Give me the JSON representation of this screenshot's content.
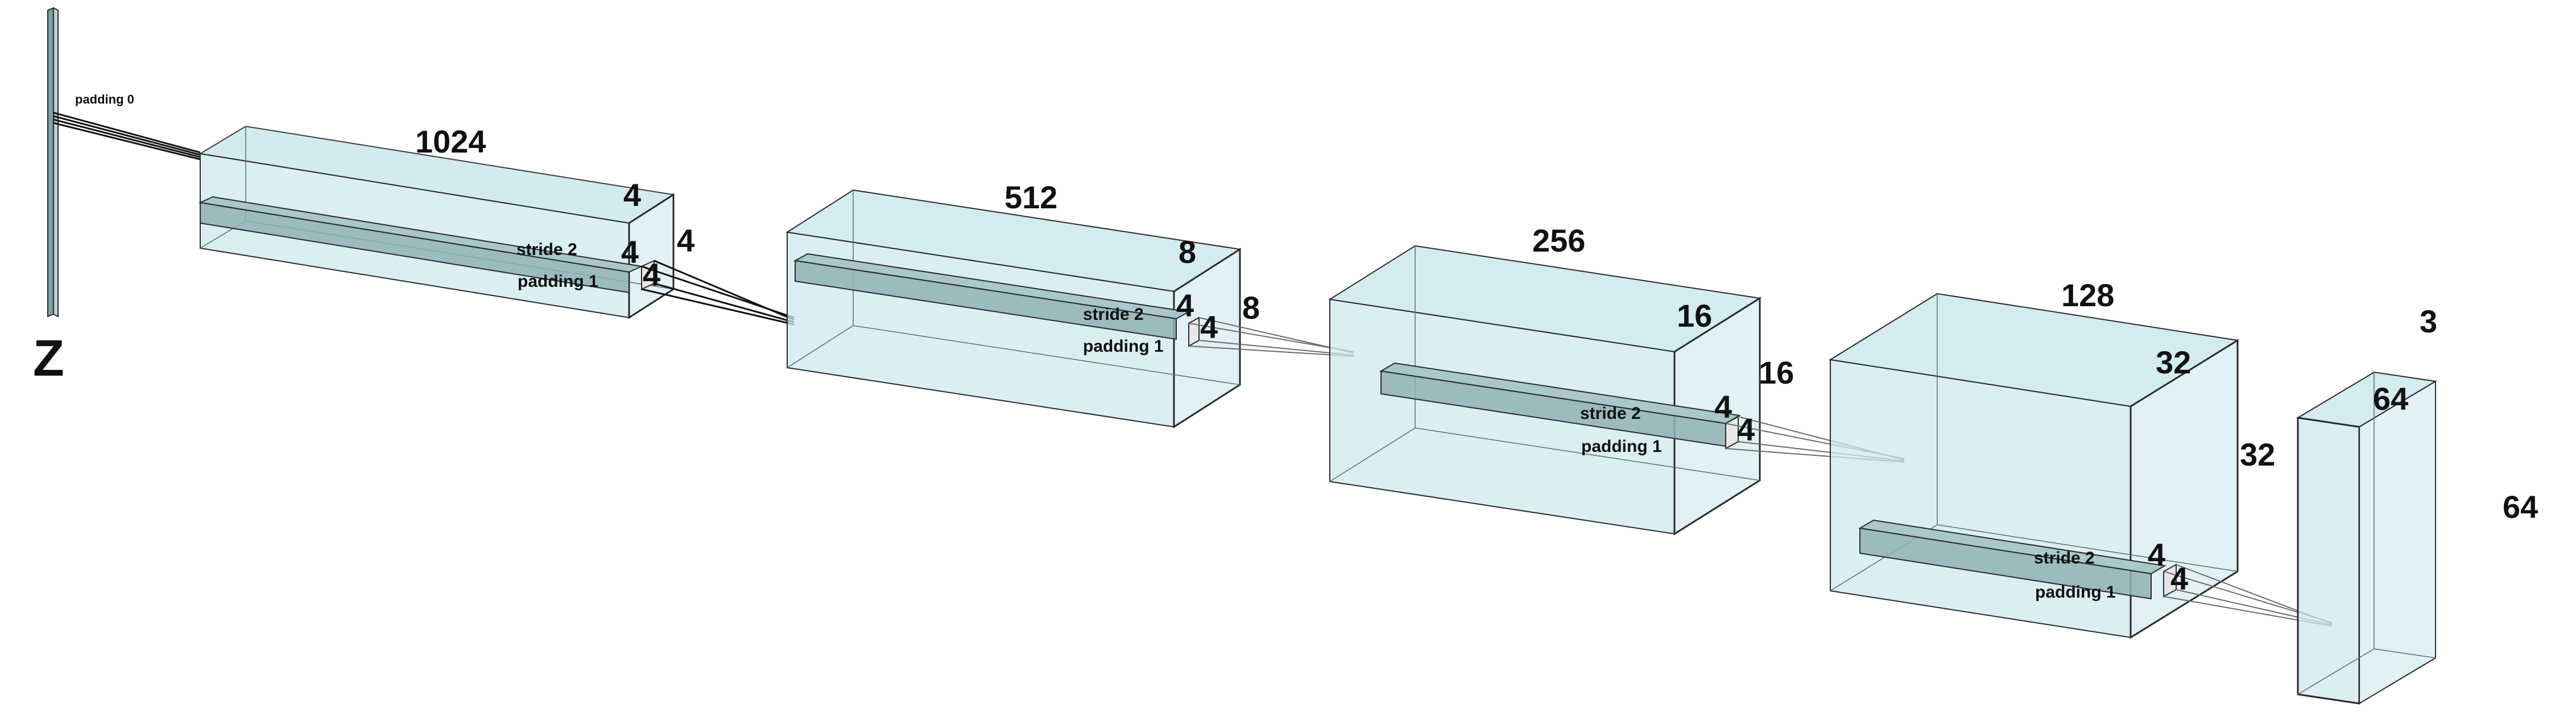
{
  "colors": {
    "block_fill": "#cfe9ee",
    "block_fill_dark": "#9ec4c8",
    "edge": "#2a2a2a",
    "kernel_fill": "#94b9bc",
    "window_fill": "#e6e6e6"
  },
  "input": {
    "label": "Z",
    "padding_label": "padding 0"
  },
  "layers": [
    {
      "channels": "1024",
      "height": "4",
      "width": "4",
      "kernel_h": "4",
      "kernel_w": "4",
      "stride_label": "stride 2",
      "padding_label": "padding 1"
    },
    {
      "channels": "512",
      "height": "8",
      "width": "8",
      "kernel_h": "4",
      "kernel_w": "4",
      "stride_label": "stride 2",
      "padding_label": "padding 1"
    },
    {
      "channels": "256",
      "height": "16",
      "width": "16",
      "kernel_h": "4",
      "kernel_w": "4",
      "stride_label": "stride 2",
      "padding_label": "padding 1"
    },
    {
      "channels": "128",
      "height": "32",
      "width": "32",
      "kernel_h": "4",
      "kernel_w": "4",
      "stride_label": "stride 2",
      "padding_label": "padding 1"
    }
  ],
  "output": {
    "channels": "3",
    "height": "64",
    "width": "64"
  }
}
